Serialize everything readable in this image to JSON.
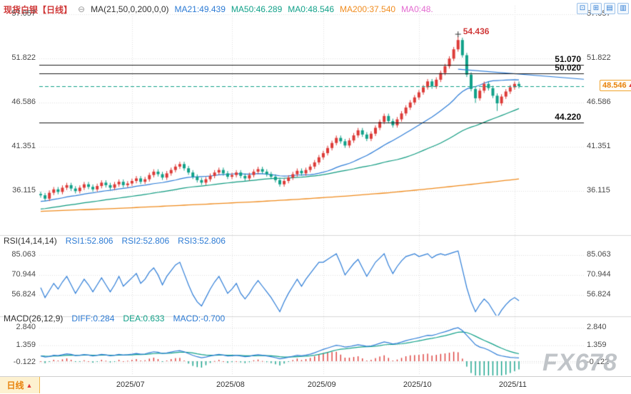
{
  "header": {
    "instrument": "现货白银",
    "period": "【日线】",
    "collapse_icon": "⊖",
    "ma_settings": "MA(21,50,0,200,0,0)",
    "ma_values": [
      {
        "label": "MA21:49.439",
        "color": "#2d7bd4"
      },
      {
        "label": "MA50:46.289",
        "color": "#11a189"
      },
      {
        "label": "MA0:48.546",
        "color": "#11a189"
      },
      {
        "label": "MA200:37.540",
        "color": "#f08c1f"
      },
      {
        "label": "MA0:48.",
        "color": "#e36ad0"
      }
    ],
    "toolbar": [
      {
        "name": "restore-window-icon",
        "glyph": "⊡"
      },
      {
        "name": "grid-layout-icon",
        "glyph": "⊞"
      },
      {
        "name": "rows-layout-icon",
        "glyph": "▤"
      },
      {
        "name": "columns-layout-icon",
        "glyph": "▥"
      }
    ]
  },
  "price_axis": {
    "ticks": [
      "57.057",
      "51.822",
      "46.586",
      "41.351",
      "36.115"
    ]
  },
  "levels": {
    "lines": [
      "51.070",
      "50.020",
      "44.220"
    ],
    "current": "48.546",
    "peak": "54.436",
    "arrow": "▲"
  },
  "rsi": {
    "title": "RSI(14,14,14)",
    "values": [
      {
        "label": "RSI1:52.806",
        "color": "#2d7bd4"
      },
      {
        "label": "RSI2:52.806",
        "color": "#2d7bd4"
      },
      {
        "label": "RSI3:52.806",
        "color": "#2d7bd4"
      }
    ],
    "ticks": [
      "85.063",
      "70.944",
      "56.824"
    ]
  },
  "macd": {
    "title": "MACD(26,12,9)",
    "values": [
      {
        "label": "DIFF:0.284",
        "color": "#2d7bd4"
      },
      {
        "label": "DEA:0.633",
        "color": "#11a189"
      },
      {
        "label": "MACD:-0.700",
        "color": "#2d7bd4"
      }
    ],
    "ticks": [
      "2.840",
      "1.359",
      "-0.122"
    ]
  },
  "bottom": {
    "tab": "日线",
    "tab_arrow": "▲"
  },
  "watermark": "FX678",
  "colors": {
    "up": "#dd3b38",
    "down": "#11a189",
    "ma21": "#2f7ed8",
    "ma50": "#0f9b80",
    "ma200": "#f08c1f",
    "rsi_line": "#2f7ed8",
    "diff_line": "#2f7ed8",
    "dea_line": "#11a189",
    "hist_pos": "#dd3b38",
    "hist_neg": "#11a189",
    "level_line": "#1c1c1c",
    "current_line": "#11a189",
    "grid": "#e0e0e0",
    "separator": "#d8d8d8",
    "accent_orange": "#f08c1f",
    "title_red": "#d03a3a",
    "link_blue": "#2d7bd4"
  },
  "chart_data": {
    "type": "candlestick",
    "symbol": "现货白银",
    "interval": "daily",
    "x_range": [
      "2025/06",
      "2025/11"
    ],
    "price_ylim": [
      31.9,
      57.5
    ],
    "default_wick": 0.28,
    "ma_seeds": {
      "21": 34.0,
      "50": 32.2
    },
    "closes": [
      35.6,
      35.2,
      35.9,
      36.3,
      36.0,
      36.5,
      36.8,
      36.4,
      36.1,
      36.5,
      36.9,
      36.6,
      36.3,
      36.7,
      37.1,
      36.8,
      36.5,
      36.9,
      37.2,
      36.8,
      37.0,
      37.3,
      37.6,
      37.2,
      37.5,
      38.0,
      38.4,
      38.1,
      37.7,
      38.2,
      38.6,
      39.0,
      39.3,
      38.8,
      38.3,
      37.8,
      37.4,
      37.1,
      37.5,
      37.9,
      38.3,
      38.6,
      38.2,
      37.8,
      38.0,
      38.3,
      37.9,
      37.6,
      38.0,
      38.4,
      38.7,
      38.4,
      38.1,
      37.8,
      37.4,
      36.9,
      37.3,
      37.7,
      38.1,
      38.5,
      38.2,
      38.6,
      39.0,
      39.5,
      40.1,
      40.6,
      41.2,
      41.8,
      42.4,
      42.0,
      41.5,
      42.1,
      42.7,
      43.3,
      42.8,
      42.3,
      42.9,
      43.6,
      44.3,
      45.0,
      44.4,
      43.9,
      44.6,
      45.3,
      46.0,
      46.6,
      47.2,
      47.8,
      48.4,
      49.1,
      48.5,
      49.3,
      50.1,
      50.9,
      51.8,
      52.9,
      54.0,
      52.2,
      49.9,
      48.2,
      47.1,
      48.0,
      48.8,
      48.3,
      47.4,
      46.5,
      47.3,
      47.9,
      48.4,
      48.8,
      48.546
    ],
    "wick_overrides": {
      "96": {
        "high": 54.436
      },
      "100": {
        "low": 46.55
      },
      "105": {
        "low": 45.6
      }
    },
    "month_ticks": [
      {
        "label": "2025/07",
        "index": 21
      },
      {
        "label": "2025/08",
        "index": 44
      },
      {
        "label": "2025/09",
        "index": 65
      },
      {
        "label": "2025/10",
        "index": 87
      },
      {
        "label": "2025/11",
        "index": 109
      }
    ],
    "indicators": {
      "rsi": [
        62,
        55,
        60,
        65,
        61,
        66,
        70,
        64,
        58,
        63,
        68,
        64,
        59,
        64,
        69,
        64,
        59,
        64,
        70,
        63,
        66,
        69,
        72,
        65,
        68,
        73,
        76,
        71,
        64,
        70,
        74,
        78,
        80,
        72,
        64,
        57,
        52,
        49,
        55,
        61,
        66,
        70,
        64,
        58,
        61,
        65,
        58,
        54,
        58,
        63,
        67,
        63,
        59,
        55,
        50,
        45,
        52,
        58,
        63,
        68,
        63,
        68,
        72,
        76,
        80,
        80,
        82,
        84,
        86,
        79,
        71,
        75,
        79,
        82,
        76,
        70,
        75,
        80,
        83,
        86,
        78,
        72,
        77,
        81,
        84,
        85,
        86,
        84,
        85,
        86,
        83,
        85,
        86,
        85,
        86,
        87,
        88,
        75,
        62,
        52,
        45,
        50,
        54,
        51,
        46,
        41,
        46,
        50,
        53,
        55,
        52.806
      ],
      "macd_diff": [
        0.45,
        0.35,
        0.4,
        0.5,
        0.48,
        0.55,
        0.62,
        0.58,
        0.48,
        0.5,
        0.56,
        0.52,
        0.45,
        0.5,
        0.58,
        0.54,
        0.46,
        0.5,
        0.58,
        0.52,
        0.55,
        0.6,
        0.66,
        0.6,
        0.62,
        0.72,
        0.8,
        0.76,
        0.65,
        0.7,
        0.78,
        0.86,
        0.9,
        0.8,
        0.65,
        0.5,
        0.38,
        0.3,
        0.35,
        0.44,
        0.52,
        0.58,
        0.52,
        0.44,
        0.46,
        0.5,
        0.44,
        0.38,
        0.42,
        0.5,
        0.55,
        0.5,
        0.44,
        0.38,
        0.3,
        0.2,
        0.26,
        0.34,
        0.42,
        0.5,
        0.46,
        0.52,
        0.6,
        0.72,
        0.86,
        1.0,
        1.12,
        1.24,
        1.35,
        1.3,
        1.2,
        1.24,
        1.32,
        1.4,
        1.34,
        1.26,
        1.3,
        1.4,
        1.52,
        1.64,
        1.56,
        1.46,
        1.52,
        1.62,
        1.74,
        1.84,
        1.92,
        2.0,
        2.1,
        2.2,
        2.18,
        2.28,
        2.4,
        2.5,
        2.62,
        2.76,
        2.84,
        2.6,
        2.2,
        1.8,
        1.4,
        1.2,
        1.1,
        0.95,
        0.75,
        0.55,
        0.45,
        0.38,
        0.32,
        0.3,
        0.284
      ],
      "macd_dea": [
        0.45,
        0.43,
        0.42,
        0.44,
        0.45,
        0.47,
        0.5,
        0.52,
        0.51,
        0.51,
        0.52,
        0.52,
        0.51,
        0.51,
        0.52,
        0.52,
        0.51,
        0.51,
        0.52,
        0.52,
        0.53,
        0.54,
        0.57,
        0.57,
        0.58,
        0.61,
        0.65,
        0.67,
        0.67,
        0.67,
        0.69,
        0.73,
        0.76,
        0.77,
        0.75,
        0.7,
        0.63,
        0.57,
        0.52,
        0.51,
        0.51,
        0.52,
        0.52,
        0.51,
        0.5,
        0.5,
        0.49,
        0.46,
        0.46,
        0.46,
        0.48,
        0.49,
        0.48,
        0.46,
        0.43,
        0.38,
        0.36,
        0.35,
        0.37,
        0.39,
        0.41,
        0.43,
        0.46,
        0.51,
        0.58,
        0.66,
        0.75,
        0.85,
        0.95,
        1.02,
        1.05,
        1.09,
        1.14,
        1.19,
        1.22,
        1.23,
        1.24,
        1.27,
        1.32,
        1.39,
        1.42,
        1.43,
        1.45,
        1.48,
        1.53,
        1.59,
        1.66,
        1.73,
        1.8,
        1.88,
        1.94,
        2.01,
        2.09,
        2.17,
        2.26,
        2.36,
        2.46,
        2.49,
        2.43,
        2.3,
        2.12,
        1.94,
        1.77,
        1.61,
        1.44,
        1.26,
        1.1,
        0.95,
        0.82,
        0.72,
        0.633
      ],
      "ma200_anchors": [
        33.7,
        33.9,
        34.1,
        34.35,
        34.6,
        34.85,
        35.15,
        35.5,
        35.9,
        36.4,
        36.95,
        37.54
      ]
    },
    "key_levels": {
      "resistance": [
        51.07,
        50.02
      ],
      "support": 44.22,
      "last": 48.546,
      "high": 54.436
    },
    "overlays": {
      "trendline": {
        "from_index": 96,
        "from_price": 50.55,
        "to_price": 49.35
      }
    }
  }
}
